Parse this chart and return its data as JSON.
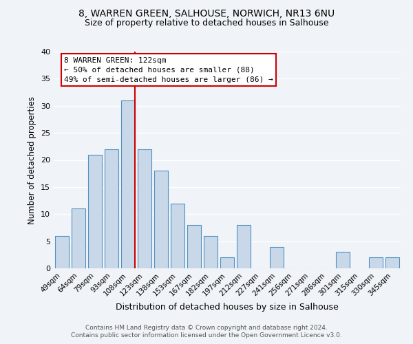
{
  "title": "8, WARREN GREEN, SALHOUSE, NORWICH, NR13 6NU",
  "subtitle": "Size of property relative to detached houses in Salhouse",
  "xlabel": "Distribution of detached houses by size in Salhouse",
  "ylabel": "Number of detached properties",
  "bar_color": "#c8d8e8",
  "bar_edge_color": "#5090c0",
  "background_color": "#f0f4f8",
  "grid_color": "#ffffff",
  "categories": [
    "49sqm",
    "64sqm",
    "79sqm",
    "93sqm",
    "108sqm",
    "123sqm",
    "138sqm",
    "153sqm",
    "167sqm",
    "182sqm",
    "197sqm",
    "212sqm",
    "227sqm",
    "241sqm",
    "256sqm",
    "271sqm",
    "286sqm",
    "301sqm",
    "315sqm",
    "330sqm",
    "345sqm"
  ],
  "values": [
    6,
    11,
    21,
    22,
    31,
    22,
    18,
    12,
    8,
    6,
    2,
    8,
    0,
    4,
    0,
    0,
    0,
    3,
    0,
    2,
    2
  ],
  "ylim": [
    0,
    40
  ],
  "yticks": [
    0,
    5,
    10,
    15,
    20,
    25,
    30,
    35,
    40
  ],
  "vline_color": "#cc0000",
  "annotation_title": "8 WARREN GREEN: 122sqm",
  "annotation_line1": "← 50% of detached houses are smaller (88)",
  "annotation_line2": "49% of semi-detached houses are larger (86) →",
  "annotation_box_color": "#ffffff",
  "annotation_box_edge": "#cc0000",
  "footer_line1": "Contains HM Land Registry data © Crown copyright and database right 2024.",
  "footer_line2": "Contains public sector information licensed under the Open Government Licence v3.0."
}
